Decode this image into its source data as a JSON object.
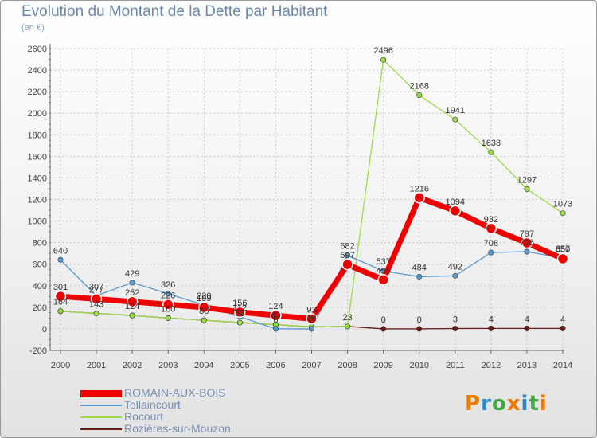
{
  "header": {
    "title": "Evolution du Montant de la Dette par Habitant",
    "subtitle": "(en €)"
  },
  "chart_data": {
    "type": "line",
    "title": "Evolution du Montant de la Dette par Habitant",
    "ylabel": "(en €)",
    "xlabel": "",
    "x": [
      "2000",
      "2001",
      "2002",
      "2003",
      "2004",
      "2005",
      "2006",
      "2007",
      "2008",
      "2009",
      "2010",
      "2011",
      "2012",
      "2013",
      "2014"
    ],
    "yticks": [
      -200,
      0,
      200,
      400,
      600,
      800,
      1000,
      1200,
      1400,
      1600,
      1800,
      2000,
      2200,
      2400,
      2600
    ],
    "ylim": [
      -200,
      2600
    ],
    "grid": true,
    "legend_position": "bottom-left",
    "series": [
      {
        "name": "ROMAIN-AUX-BOIS",
        "color": "#ee0000",
        "values": [
          301,
          277,
          252,
          226,
          199,
          156,
          124,
          93,
          597,
          455,
          1216,
          1094,
          932,
          797,
          650
        ]
      },
      {
        "name": "Tollaincourt",
        "color": "#5a9ad0",
        "values": [
          640,
          307,
          429,
          326,
          220,
          112,
          0,
          0,
          682,
          537,
          484,
          492,
          708,
          716,
          657
        ]
      },
      {
        "name": "Rocourt",
        "color": "#99dd44",
        "values": [
          164,
          143,
          124,
          100,
          80,
          58,
          40,
          18,
          23,
          2496,
          2168,
          1941,
          1638,
          1297,
          1073
        ]
      },
      {
        "name": "Rozières-sur-Mouzon",
        "color": "#6b1a1a",
        "values": [
          164,
          143,
          124,
          100,
          80,
          58,
          40,
          18,
          23,
          0,
          0,
          3,
          4,
          4,
          4
        ]
      }
    ],
    "data_labels": [
      {
        "series": 0,
        "labels": [
          "301",
          "277",
          "252",
          "226",
          "199",
          "156",
          "124",
          "93",
          "597",
          "455",
          "1216",
          "1094",
          "932",
          "797",
          "650"
        ]
      },
      {
        "series": 1,
        "labels": [
          "640",
          "307",
          "429",
          "326",
          "220",
          "112",
          "0",
          "0",
          "682",
          "537",
          "484",
          "492",
          "708",
          "716",
          "657"
        ]
      },
      {
        "series": 2,
        "labels": [
          "",
          "",
          "",
          "",
          "",
          "",
          "",
          "",
          "",
          "2496",
          "2168",
          "1941",
          "1638",
          "1297",
          "1073"
        ]
      },
      {
        "series": 3,
        "labels": [
          "164",
          "143",
          "124",
          "100",
          "80",
          "58",
          "40",
          "18",
          "23",
          "0",
          "0",
          "3",
          "4",
          "4",
          "4"
        ]
      }
    ]
  },
  "logo": {
    "text": "Proxiti"
  }
}
